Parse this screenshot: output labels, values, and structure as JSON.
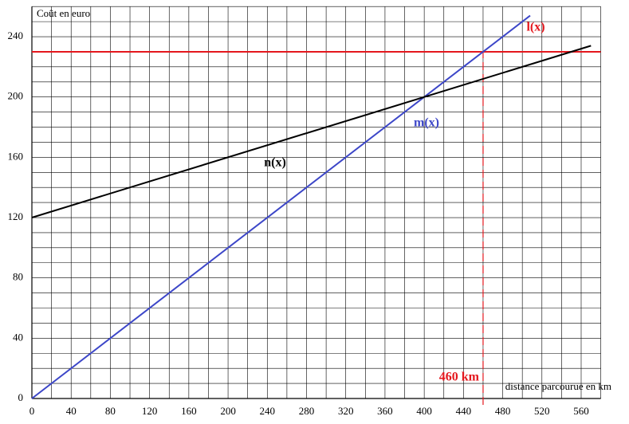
{
  "chart_data": {
    "type": "line",
    "ylabel": "Coût en euro",
    "xlabel": "distance parcourue en km",
    "xlim": [
      0,
      580
    ],
    "ylim": [
      0,
      260
    ],
    "xticks": [
      0,
      40,
      80,
      120,
      160,
      200,
      240,
      280,
      320,
      360,
      400,
      440,
      480,
      520,
      560
    ],
    "yticks": [
      0,
      40,
      80,
      120,
      160,
      200,
      240
    ],
    "xminorticks": [
      20,
      60,
      100,
      140,
      180,
      220,
      260,
      300,
      340,
      380,
      420,
      460,
      500,
      540,
      580
    ],
    "yminorticks": [
      10,
      20,
      30,
      50,
      60,
      70,
      90,
      100,
      110,
      130,
      140,
      150,
      170,
      180,
      190,
      210,
      220,
      230,
      250,
      260
    ],
    "grid": true,
    "series": [
      {
        "name": "l(x)",
        "color": "#e4171d",
        "x": [
          0,
          580
        ],
        "values": [
          230,
          230
        ]
      },
      {
        "name": "m(x)",
        "color": "#3c46c8",
        "x": [
          0,
          508
        ],
        "values": [
          0,
          254
        ]
      },
      {
        "name": "n(x)",
        "color": "#000000",
        "x": [
          0,
          570
        ],
        "values": [
          120,
          234
        ]
      }
    ],
    "marker_line": {
      "x": 460,
      "label": "460 km",
      "color": "#e4171d"
    }
  }
}
